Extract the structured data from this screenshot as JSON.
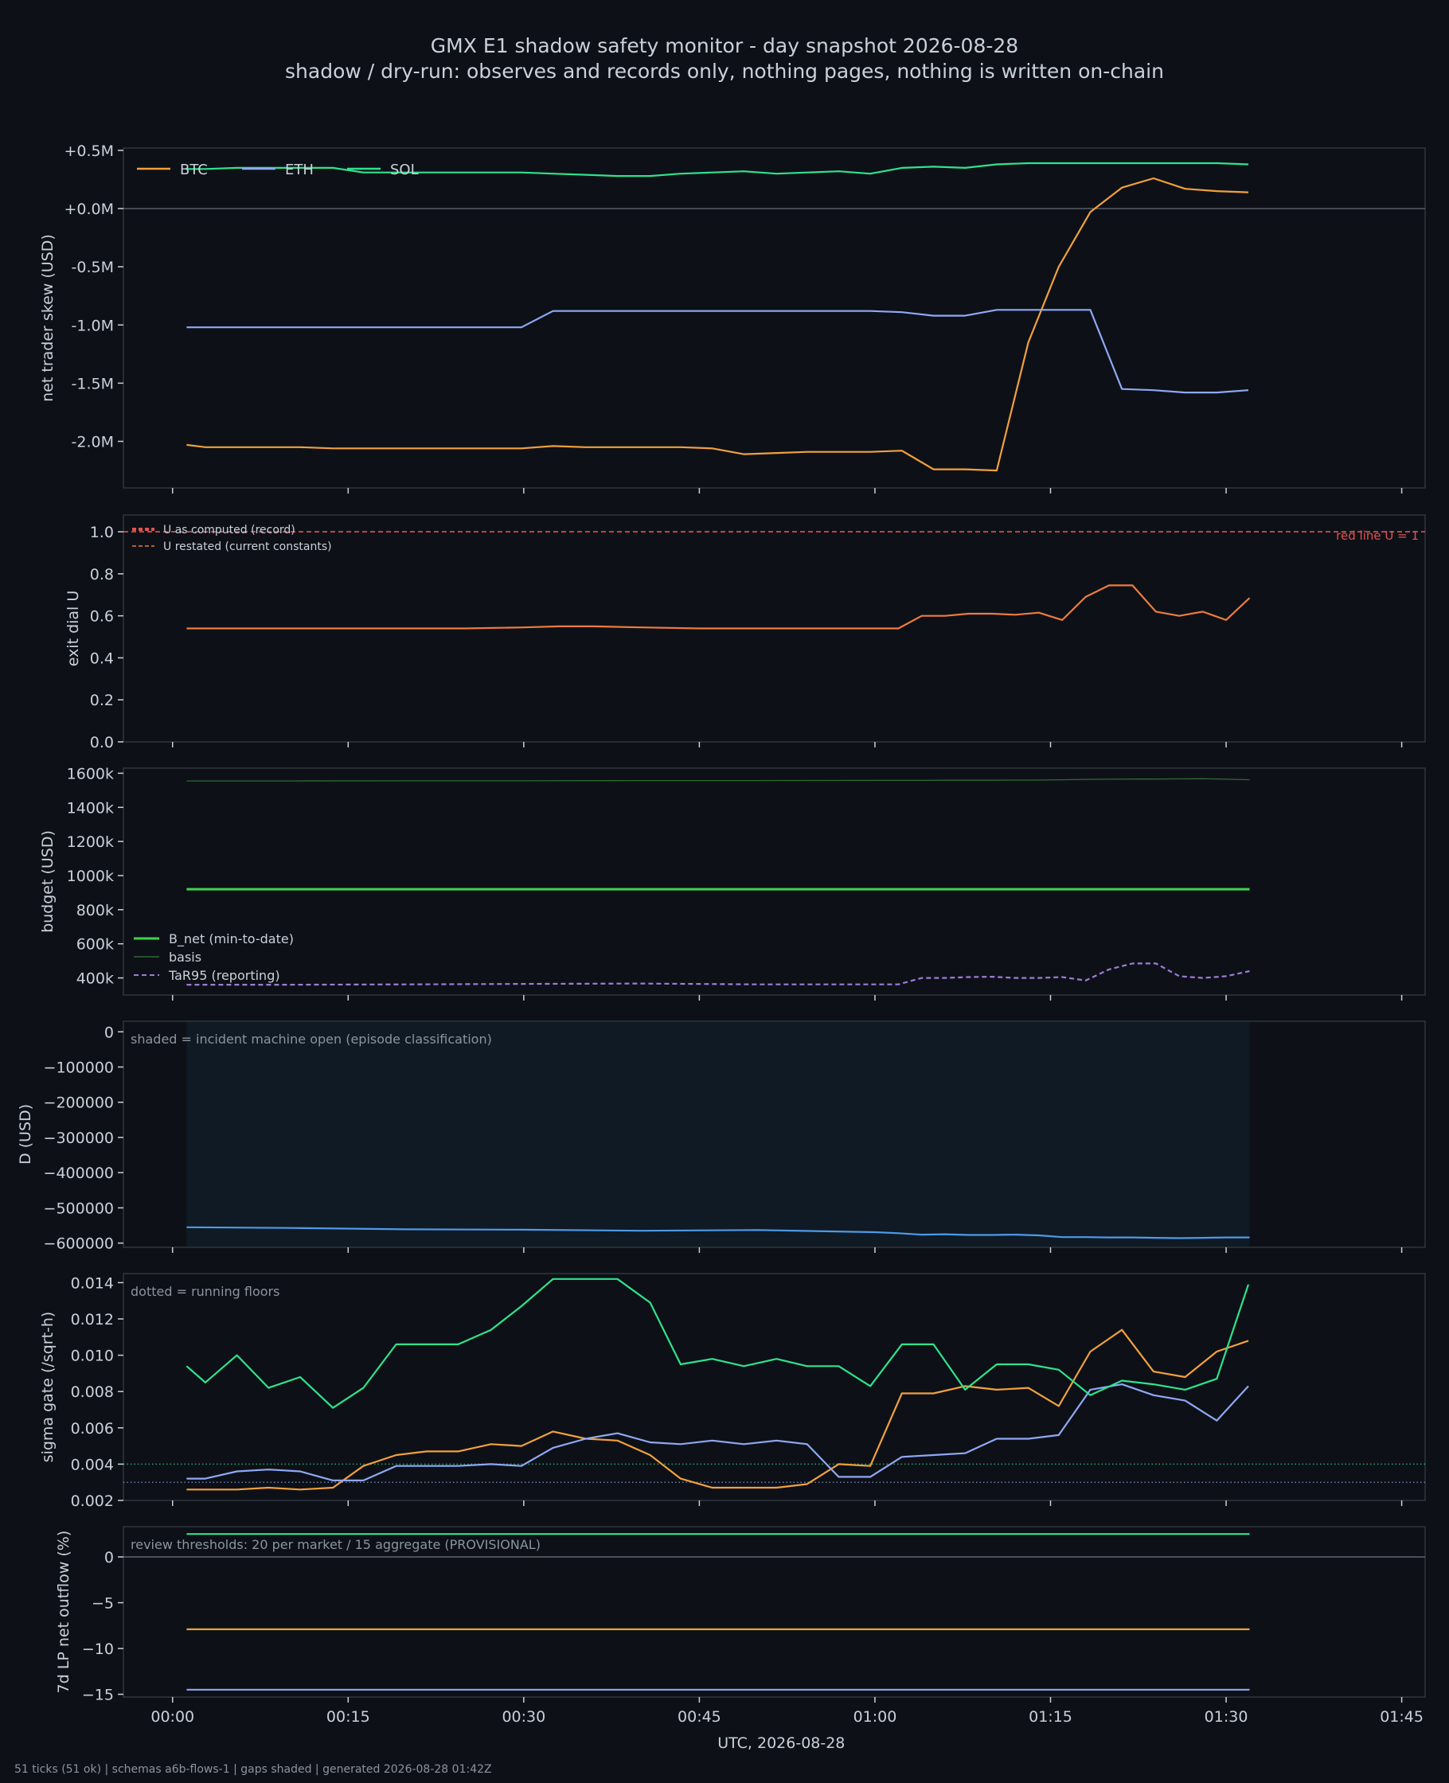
{
  "title": "GMX E1 shadow safety monitor - day snapshot 2026-08-28",
  "subtitle": "shadow / dry-run: observes and records only, nothing pages, nothing is written on-chain",
  "footer": "51 ticks (51 ok) | schemas a6b-flows-1 | gaps shaded | generated 2026-08-28 01:42Z",
  "colors": {
    "background": "#0d1117",
    "panel": "#0d1117",
    "border": "#30363d",
    "text": "#c9d1d9",
    "muted": "#8b949e",
    "btc": "#f2a03d",
    "eth": "#8fa8f5",
    "sol": "#2fe38c",
    "u_line": "#ee7b3f",
    "red": "#e05252",
    "green": "#3fd44f",
    "basis": "#2e6b33",
    "tar": "#a07ad8",
    "d_line": "#4e9ae8",
    "shade": "#0f1a24"
  },
  "chart_data": [
    {
      "type": "line",
      "ylabel": "net trader skew (USD)",
      "xlabel": "",
      "yticks": [
        "+0.5M",
        "+0.0M",
        "-0.5M",
        "-1.0M",
        "-1.5M",
        "-2.0M"
      ],
      "ytick_values": [
        0.5,
        0.0,
        -0.5,
        -1.0,
        -1.5,
        -2.0
      ],
      "ylim": [
        -2.4,
        0.52
      ],
      "legend": "top-left",
      "zero_line": true,
      "x_minutes": [
        1.2,
        2.8,
        5.5,
        8.2,
        10.9,
        13.7,
        16.3,
        19.1,
        21.7,
        24.4,
        27.2,
        29.8,
        32.5,
        35.3,
        38,
        40.8,
        43.4,
        46.1,
        48.8,
        51.6,
        54.2,
        56.9,
        59.6,
        62.3,
        65,
        67.7,
        70.4,
        73.1,
        75.7,
        78.4,
        81.1,
        83.8,
        86.5,
        89.2,
        91.9
      ],
      "series": [
        {
          "name": "BTC",
          "color": "btc",
          "values": [
            -2.03,
            -2.05,
            -2.05,
            -2.05,
            -2.05,
            -2.06,
            -2.06,
            -2.06,
            -2.06,
            -2.06,
            -2.06,
            -2.06,
            -2.04,
            -2.05,
            -2.05,
            -2.05,
            -2.05,
            -2.06,
            -2.11,
            -2.1,
            -2.09,
            -2.09,
            -2.09,
            -2.08,
            -2.24,
            -2.24,
            -2.25,
            -1.15,
            -0.5,
            -0.03,
            0.18,
            0.26,
            0.17,
            0.15,
            0.14
          ]
        },
        {
          "name": "ETH",
          "color": "eth",
          "values": [
            -1.02,
            -1.02,
            -1.02,
            -1.02,
            -1.02,
            -1.02,
            -1.02,
            -1.02,
            -1.02,
            -1.02,
            -1.02,
            -1.02,
            -0.88,
            -0.88,
            -0.88,
            -0.88,
            -0.88,
            -0.88,
            -0.88,
            -0.88,
            -0.88,
            -0.88,
            -0.88,
            -0.89,
            -0.92,
            -0.92,
            -0.87,
            -0.87,
            -0.87,
            -0.87,
            -1.55,
            -1.56,
            -1.58,
            -1.58,
            -1.56
          ]
        },
        {
          "name": "SOL",
          "color": "sol",
          "values": [
            0.34,
            0.34,
            0.35,
            0.35,
            0.35,
            0.35,
            0.31,
            0.31,
            0.31,
            0.31,
            0.31,
            0.31,
            0.3,
            0.29,
            0.28,
            0.28,
            0.3,
            0.31,
            0.32,
            0.3,
            0.31,
            0.32,
            0.3,
            0.35,
            0.36,
            0.35,
            0.38,
            0.39,
            0.39,
            0.39,
            0.39,
            0.39,
            0.39,
            0.39,
            0.38
          ]
        }
      ]
    },
    {
      "type": "line",
      "ylabel": "exit dial U",
      "xlabel": "",
      "yticks": [
        "1.0",
        "0.8",
        "0.6",
        "0.4",
        "0.2",
        "0.0"
      ],
      "ytick_values": [
        1.0,
        0.8,
        0.6,
        0.4,
        0.2,
        0.0
      ],
      "ylim": [
        0,
        1.08
      ],
      "legend": "top-left",
      "annotation": "red line U = 1",
      "red_line": 1.0,
      "x_minutes": [
        1.2,
        5,
        10,
        15,
        20,
        25,
        30,
        33,
        36,
        40,
        45,
        50,
        55,
        60,
        62,
        64,
        66,
        68,
        70,
        72,
        74,
        76,
        78,
        80,
        82,
        84,
        86,
        88,
        90,
        92
      ],
      "series": [
        {
          "name": "U as computed (record)",
          "color": "red",
          "style": "dashed-thick",
          "values": [
            1.0,
            1.0,
            1.0,
            1.0,
            1.0,
            1.0,
            1.0,
            1.0,
            1.0,
            1.0,
            1.0,
            1.0,
            1.0,
            1.0,
            1.0,
            1.0,
            1.0,
            1.0,
            1.0,
            1.0,
            1.0,
            1.0,
            1.0,
            1.0,
            1.0,
            1.0,
            1.0,
            1.0,
            1.0,
            1.0
          ]
        },
        {
          "name": "U restated (current constants)",
          "color": "u_line",
          "style": "solid",
          "values": [
            0.54,
            0.54,
            0.54,
            0.54,
            0.54,
            0.54,
            0.545,
            0.55,
            0.55,
            0.545,
            0.54,
            0.54,
            0.54,
            0.54,
            0.54,
            0.6,
            0.6,
            0.61,
            0.61,
            0.605,
            0.615,
            0.58,
            0.69,
            0.745,
            0.745,
            0.62,
            0.6,
            0.62,
            0.58,
            0.685
          ]
        }
      ]
    },
    {
      "type": "line",
      "ylabel": "budget (USD)",
      "xlabel": "",
      "yticks": [
        "1600k",
        "1400k",
        "1200k",
        "1000k",
        "800k",
        "600k",
        "400k"
      ],
      "ytick_values": [
        1600,
        1400,
        1200,
        1000,
        800,
        600,
        400
      ],
      "ylim": [
        300,
        1630
      ],
      "legend": "bottom-left",
      "x_minutes": [
        1.2,
        10,
        20,
        30,
        40,
        50,
        60,
        62,
        64,
        66,
        68,
        70,
        72,
        74,
        76,
        78,
        80,
        82,
        84,
        86,
        88,
        90,
        92
      ],
      "series": [
        {
          "name": "B_net (min-to-date)",
          "color": "green",
          "style": "solid-thick",
          "values": [
            920,
            920,
            920,
            920,
            920,
            920,
            920,
            920,
            920,
            920,
            920,
            920,
            920,
            920,
            920,
            920,
            920,
            920,
            920,
            920,
            920,
            920,
            920
          ]
        },
        {
          "name": "basis",
          "color": "basis",
          "style": "solid-thin",
          "values": [
            1555,
            1555,
            1556,
            1556,
            1557,
            1557,
            1558,
            1558,
            1558,
            1559,
            1559,
            1559,
            1560,
            1560,
            1562,
            1564,
            1565,
            1566,
            1566,
            1567,
            1568,
            1565,
            1562
          ]
        },
        {
          "name": "TaR95 (reporting)",
          "color": "tar",
          "style": "dashed",
          "values": [
            360,
            360,
            362,
            365,
            367,
            362,
            362,
            362,
            400,
            400,
            405,
            407,
            400,
            400,
            405,
            385,
            450,
            485,
            485,
            410,
            400,
            410,
            440
          ]
        }
      ]
    },
    {
      "type": "area",
      "ylabel": "D (USD)",
      "xlabel": "",
      "annotation": "shaded = incident machine open (episode classification)",
      "shaded_range_minutes": [
        1.2,
        92
      ],
      "yticks": [
        "0",
        "−100000",
        "−200000",
        "−300000",
        "−400000",
        "−500000",
        "−600000"
      ],
      "ytick_values": [
        0,
        -100000,
        -200000,
        -300000,
        -400000,
        -500000,
        -600000
      ],
      "ylim": [
        -612000,
        30000
      ],
      "x_minutes": [
        1.2,
        10,
        20,
        30,
        40,
        50,
        60,
        62,
        64,
        66,
        68,
        70,
        72,
        74,
        76,
        78,
        80,
        82,
        84,
        86,
        88,
        90,
        92
      ],
      "series": [
        {
          "name": "D",
          "color": "d_line",
          "values": [
            -555000,
            -557000,
            -561000,
            -562000,
            -565000,
            -563000,
            -569000,
            -572000,
            -576000,
            -575000,
            -577000,
            -577000,
            -576000,
            -578000,
            -583000,
            -583000,
            -584000,
            -584000,
            -585000,
            -586000,
            -585000,
            -584000,
            -584000
          ]
        }
      ]
    },
    {
      "type": "line",
      "ylabel": "sigma gate (/sqrt-h)",
      "xlabel": "",
      "annotation": "dotted = running floors",
      "yticks": [
        "0.014",
        "0.012",
        "0.010",
        "0.008",
        "0.006",
        "0.004",
        "0.002"
      ],
      "ytick_values": [
        0.014,
        0.012,
        0.01,
        0.008,
        0.006,
        0.004,
        0.002
      ],
      "ylim": [
        0.002,
        0.0145
      ],
      "floors": [
        {
          "value": 0.004,
          "color": "sol"
        },
        {
          "value": 0.003,
          "color": "eth"
        }
      ],
      "x_minutes": [
        1.2,
        2.8,
        5.5,
        8.2,
        10.9,
        13.7,
        16.3,
        19.1,
        21.7,
        24.4,
        27.2,
        29.8,
        32.5,
        35.3,
        38,
        40.8,
        43.4,
        46.1,
        48.8,
        51.6,
        54.2,
        56.9,
        59.6,
        62.3,
        65,
        67.7,
        70.4,
        73.1,
        75.7,
        78.4,
        81.1,
        83.8,
        86.5,
        89.2,
        91.9
      ],
      "series": [
        {
          "name": "BTC",
          "color": "btc",
          "values": [
            0.0026,
            0.0026,
            0.0026,
            0.0027,
            0.0026,
            0.0027,
            0.0039,
            0.0045,
            0.0047,
            0.0047,
            0.0051,
            0.005,
            0.0058,
            0.0054,
            0.0053,
            0.0045,
            0.0032,
            0.0027,
            0.0027,
            0.0027,
            0.0029,
            0.004,
            0.0039,
            0.0079,
            0.0079,
            0.0083,
            0.0081,
            0.0082,
            0.0072,
            0.0102,
            0.0114,
            0.0091,
            0.0088,
            0.0102,
            0.0108
          ]
        },
        {
          "name": "ETH",
          "color": "eth",
          "values": [
            0.0032,
            0.0032,
            0.0036,
            0.0037,
            0.0036,
            0.0031,
            0.0031,
            0.0039,
            0.0039,
            0.0039,
            0.004,
            0.0039,
            0.0049,
            0.0054,
            0.0057,
            0.0052,
            0.0051,
            0.0053,
            0.0051,
            0.0053,
            0.0051,
            0.0033,
            0.0033,
            0.0044,
            0.0045,
            0.0046,
            0.0054,
            0.0054,
            0.0056,
            0.0081,
            0.0084,
            0.0078,
            0.0075,
            0.0064,
            0.0083
          ]
        },
        {
          "name": "SOL",
          "color": "sol",
          "values": [
            0.0094,
            0.0085,
            0.01,
            0.0082,
            0.0088,
            0.0071,
            0.0082,
            0.0106,
            0.0106,
            0.0106,
            0.0114,
            0.0127,
            0.0142,
            0.0142,
            0.0142,
            0.0129,
            0.0095,
            0.0098,
            0.0094,
            0.0098,
            0.0094,
            0.0094,
            0.0083,
            0.0106,
            0.0106,
            0.0081,
            0.0095,
            0.0095,
            0.0092,
            0.0078,
            0.0086,
            0.0084,
            0.0081,
            0.0087,
            0.0139
          ]
        }
      ]
    },
    {
      "type": "line",
      "ylabel": "7d LP net outflow (%)",
      "xlabel": "UTC, 2026-08-28",
      "annotation": "review thresholds: 20 per market / 15 aggregate (PROVISIONAL)",
      "yticks": [
        "0",
        "−5",
        "−10",
        "−15"
      ],
      "ytick_values": [
        0,
        -5,
        -10,
        -15
      ],
      "ylim": [
        -15.3,
        3.3
      ],
      "zero_line": true,
      "xticks": [
        "00:00",
        "00:15",
        "00:30",
        "00:45",
        "01:00",
        "01:15",
        "01:30",
        "01:45"
      ],
      "xtick_minutes": [
        0,
        15,
        30,
        45,
        60,
        75,
        90,
        105
      ],
      "x_minutes": [
        1.2,
        92
      ],
      "series": [
        {
          "name": "BTC",
          "color": "btc",
          "values": [
            -7.9,
            -7.9
          ]
        },
        {
          "name": "ETH",
          "color": "eth",
          "values": [
            -14.5,
            -14.5
          ]
        },
        {
          "name": "SOL",
          "color": "sol",
          "values": [
            2.5,
            2.5
          ]
        }
      ]
    }
  ]
}
